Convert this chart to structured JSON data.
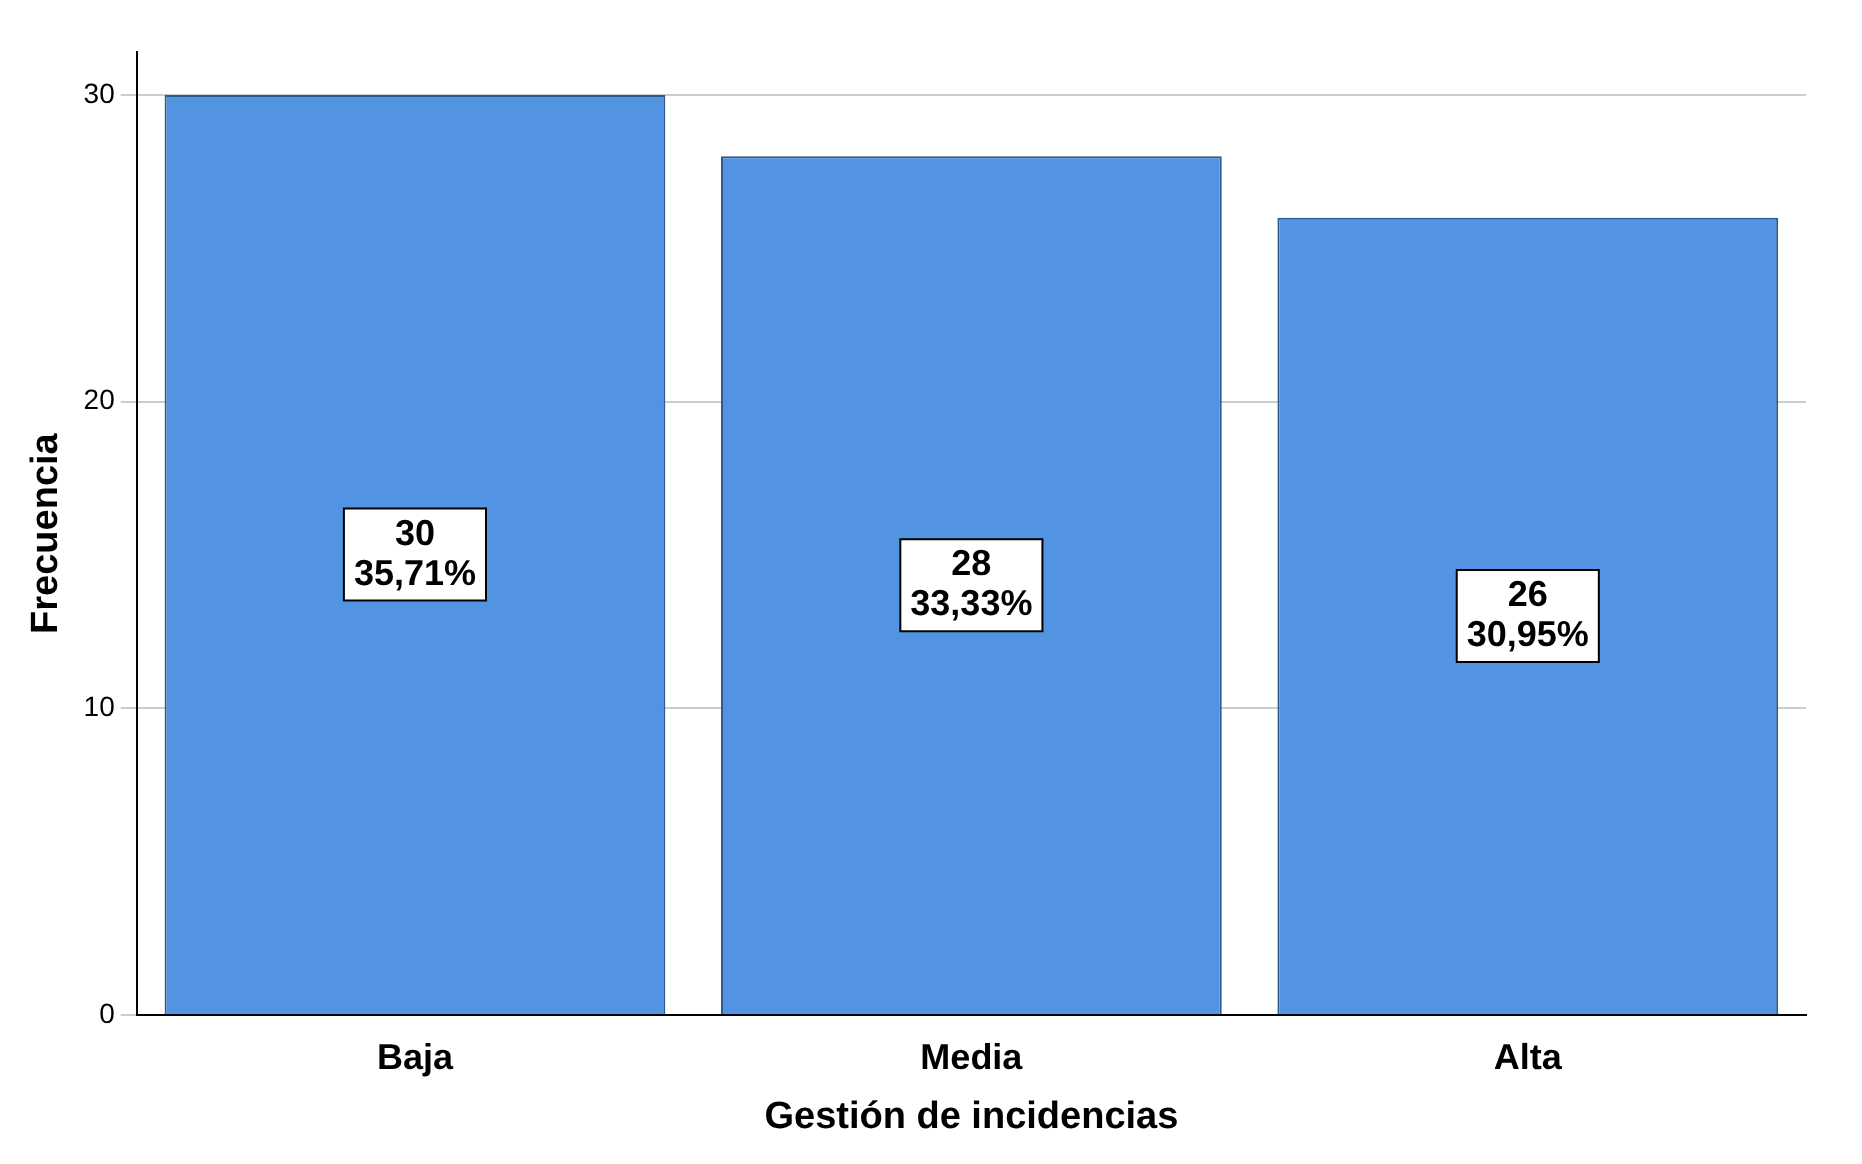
{
  "chart_data": {
    "type": "bar",
    "xlabel": "Gestión de incidencias",
    "ylabel": "Frecuencia",
    "categories": [
      "Baja",
      "Media",
      "Alta"
    ],
    "values": [
      30,
      28,
      26
    ],
    "color": "#5294e2",
    "value_labels": [
      "30\n35,71%",
      "28\n33,33%",
      "26\n30,95%"
    ],
    "ylim": [
      0,
      31.4
    ],
    "yticks": [
      0,
      10,
      20,
      30
    ],
    "grid": "y",
    "legend": false
  }
}
